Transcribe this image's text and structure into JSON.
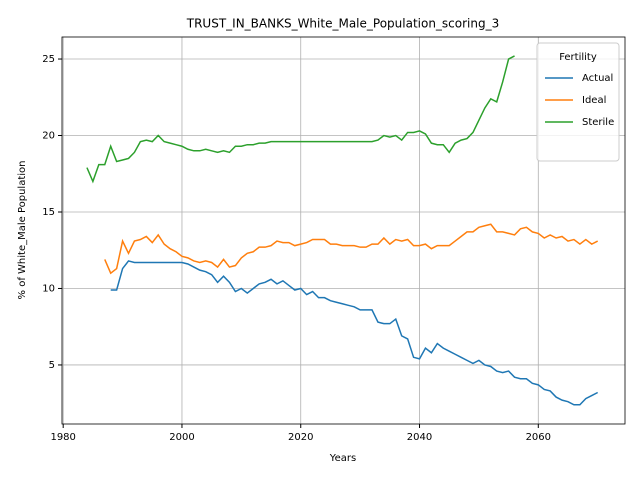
{
  "chart_data": {
    "type": "line",
    "title": "TRUST_IN_BANKS_White_Male_Population_scoring_3",
    "xlabel": "Years",
    "ylabel": "% of White_Male Population",
    "legend_title": "Fertility",
    "legend": "upper right",
    "grid": true,
    "x": [
      1984,
      1985,
      1986,
      1987,
      1988,
      1989,
      1990,
      1991,
      1992,
      1993,
      1994,
      1995,
      1996,
      1997,
      1998,
      1999,
      2000,
      2001,
      2002,
      2003,
      2004,
      2005,
      2006,
      2007,
      2008,
      2009,
      2010,
      2011,
      2012,
      2013,
      2014,
      2015,
      2016,
      2017,
      2018,
      2019,
      2020,
      2021,
      2022,
      2023,
      2024,
      2025,
      2026,
      2027,
      2028,
      2029,
      2030,
      2031,
      2032,
      2033,
      2034,
      2035,
      2036,
      2037,
      2038,
      2039,
      2040,
      2041,
      2042,
      2043,
      2044,
      2045,
      2046,
      2047,
      2048,
      2049,
      2050,
      2051,
      2052,
      2053,
      2054,
      2055,
      2056,
      2057,
      2058,
      2059,
      2060,
      2061,
      2062,
      2063,
      2064,
      2065,
      2066,
      2067,
      2068,
      2069,
      2070
    ],
    "series": [
      {
        "name": "Actual",
        "color": "#1f77b4",
        "values": [
          null,
          null,
          null,
          null,
          9.9,
          9.9,
          11.3,
          11.8,
          11.7,
          11.7,
          11.7,
          11.7,
          11.7,
          11.7,
          11.7,
          11.7,
          11.7,
          11.6,
          11.4,
          11.2,
          11.1,
          10.9,
          10.4,
          10.8,
          10.4,
          9.8,
          10.0,
          9.7,
          10.0,
          10.3,
          10.4,
          10.6,
          10.3,
          10.5,
          10.2,
          9.9,
          10.0,
          9.6,
          9.8,
          9.4,
          9.4,
          9.2,
          9.1,
          9.0,
          8.9,
          8.8,
          8.6,
          8.6,
          8.6,
          7.8,
          7.7,
          7.7,
          8.0,
          6.9,
          6.7,
          5.5,
          5.4,
          6.1,
          5.8,
          6.4,
          6.1,
          5.9,
          5.7,
          5.5,
          5.3,
          5.1,
          5.3,
          5.0,
          4.9,
          4.6,
          4.5,
          4.6,
          4.2,
          4.1,
          4.1,
          3.8,
          3.7,
          3.4,
          3.3,
          2.9,
          2.7,
          2.6,
          2.4,
          2.4,
          2.8,
          3.0,
          3.2
        ]
      },
      {
        "name": "Ideal",
        "color": "#ff7f0e",
        "values": [
          null,
          null,
          null,
          11.9,
          11.0,
          11.3,
          13.1,
          12.3,
          13.1,
          13.2,
          13.4,
          13.0,
          13.5,
          12.9,
          12.6,
          12.4,
          12.1,
          12.0,
          11.8,
          11.7,
          11.8,
          11.7,
          11.4,
          11.9,
          11.4,
          11.5,
          12.0,
          12.3,
          12.4,
          12.7,
          12.7,
          12.8,
          13.1,
          13.0,
          13.0,
          12.8,
          12.9,
          13.0,
          13.2,
          13.2,
          13.2,
          12.9,
          12.9,
          12.8,
          12.8,
          12.8,
          12.7,
          12.7,
          12.9,
          12.9,
          13.3,
          12.9,
          13.2,
          13.1,
          13.2,
          12.8,
          12.8,
          12.9,
          12.6,
          12.8,
          12.8,
          12.8,
          13.1,
          13.4,
          13.7,
          13.7,
          14.0,
          14.1,
          14.2,
          13.7,
          13.7,
          13.6,
          13.5,
          13.9,
          14.0,
          13.7,
          13.6,
          13.3,
          13.5,
          13.3,
          13.4,
          13.1,
          13.2,
          12.9,
          13.2,
          12.9,
          13.1
        ]
      },
      {
        "name": "Sterile",
        "color": "#2ca02c",
        "values": [
          17.9,
          17.0,
          18.1,
          18.1,
          19.3,
          18.3,
          18.4,
          18.5,
          18.9,
          19.6,
          19.7,
          19.6,
          20.0,
          19.6,
          19.5,
          19.4,
          19.3,
          19.1,
          19.0,
          19.0,
          19.1,
          19.0,
          18.9,
          19.0,
          18.9,
          19.3,
          19.3,
          19.4,
          19.4,
          19.5,
          19.5,
          19.6,
          19.6,
          19.6,
          19.6,
          19.6,
          19.6,
          19.6,
          19.6,
          19.6,
          19.6,
          19.6,
          19.6,
          19.6,
          19.6,
          19.6,
          19.6,
          19.6,
          19.6,
          19.7,
          20.0,
          19.9,
          20.0,
          19.7,
          20.2,
          20.2,
          20.3,
          20.1,
          19.5,
          19.4,
          19.4,
          18.9,
          19.5,
          19.7,
          19.8,
          20.2,
          21.0,
          21.8,
          22.4,
          22.2,
          23.5,
          25.0,
          25.2,
          null,
          null,
          null,
          null,
          null,
          null,
          null,
          null,
          null,
          null,
          null,
          null,
          null,
          null
        ]
      }
    ],
    "xlim": [
      1979.8,
      2074.6
    ],
    "xticks": [
      1980,
      2000,
      2020,
      2040,
      2060
    ],
    "ylim": [
      1.14,
      26.44
    ],
    "yticks": [
      5,
      10,
      15,
      20,
      25
    ]
  }
}
